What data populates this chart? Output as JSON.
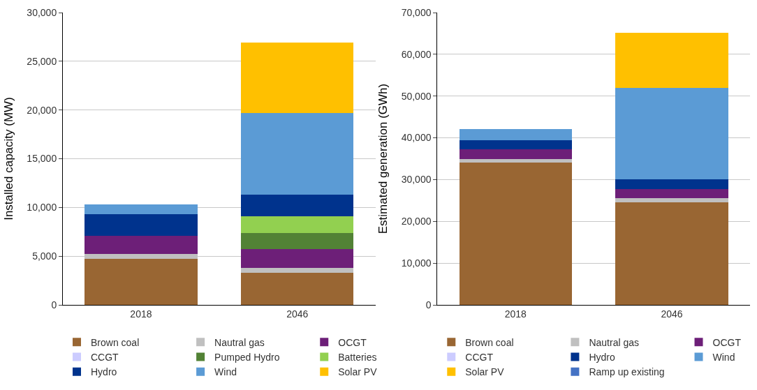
{
  "chart_data": [
    {
      "type": "bar",
      "stacked": true,
      "ylabel": "Installed capacity (MW)",
      "categories": [
        "2018",
        "2046"
      ],
      "ylim": [
        0,
        30000
      ],
      "yticks": [
        {
          "value": 0,
          "label": "0"
        },
        {
          "value": 5000,
          "label": "5,000"
        },
        {
          "value": 10000,
          "label": "10,000"
        },
        {
          "value": 15000,
          "label": "15,000"
        },
        {
          "value": 20000,
          "label": "20,000"
        },
        {
          "value": 25000,
          "label": "25,000"
        },
        {
          "value": 30000,
          "label": "30,000"
        }
      ],
      "grid": "y",
      "legend": "bottom",
      "series": [
        {
          "name": "Brown coal",
          "color": "#996633",
          "values": [
            4700,
            3300
          ]
        },
        {
          "name": "Nautral gas",
          "color": "#c0c0c0",
          "values": [
            500,
            500
          ]
        },
        {
          "name": "OCGT",
          "color": "#6d1f78",
          "values": [
            1900,
            1900
          ]
        },
        {
          "name": "CCGT",
          "color": "#ccccff",
          "values": [
            0,
            0
          ]
        },
        {
          "name": "Pumped Hydro",
          "color": "#528235",
          "values": [
            0,
            1700
          ]
        },
        {
          "name": "Batteries",
          "color": "#92d050",
          "values": [
            0,
            1700
          ]
        },
        {
          "name": "Hydro",
          "color": "#00338d",
          "values": [
            2200,
            2200
          ]
        },
        {
          "name": "Wind",
          "color": "#5b9bd5",
          "values": [
            1000,
            8400
          ]
        },
        {
          "name": "Solar PV",
          "color": "#ffc000",
          "values": [
            0,
            7200
          ]
        }
      ]
    },
    {
      "type": "bar",
      "stacked": true,
      "ylabel": "Estimated generation (GWh)",
      "categories": [
        "2018",
        "2046"
      ],
      "ylim": [
        0,
        70000
      ],
      "yticks": [
        {
          "value": 0,
          "label": "0"
        },
        {
          "value": 10000,
          "label": "10,000"
        },
        {
          "value": 20000,
          "label": "20,000"
        },
        {
          "value": 30000,
          "label": "30,000"
        },
        {
          "value": 40000,
          "label": "40,000"
        },
        {
          "value": 50000,
          "label": "50,000"
        },
        {
          "value": 60000,
          "label": "60,000"
        },
        {
          "value": 70000,
          "label": "70,000"
        }
      ],
      "grid": "y",
      "legend": "bottom",
      "series": [
        {
          "name": "Brown coal",
          "color": "#996633",
          "values": [
            34000,
            24500
          ]
        },
        {
          "name": "Nautral gas",
          "color": "#c0c0c0",
          "values": [
            1000,
            1100
          ]
        },
        {
          "name": "OCGT",
          "color": "#6d1f78",
          "values": [
            2200,
            2200
          ]
        },
        {
          "name": "CCGT",
          "color": "#ccccff",
          "values": [
            0,
            0
          ]
        },
        {
          "name": "Hydro",
          "color": "#00338d",
          "values": [
            2300,
            2200
          ]
        },
        {
          "name": "Wind",
          "color": "#5b9bd5",
          "values": [
            2600,
            22000
          ]
        },
        {
          "name": "Solar PV",
          "color": "#ffc000",
          "values": [
            0,
            13100
          ]
        },
        {
          "name": "Ramp up existing",
          "color": "#4472c4",
          "values": [
            0,
            0
          ]
        }
      ]
    }
  ]
}
